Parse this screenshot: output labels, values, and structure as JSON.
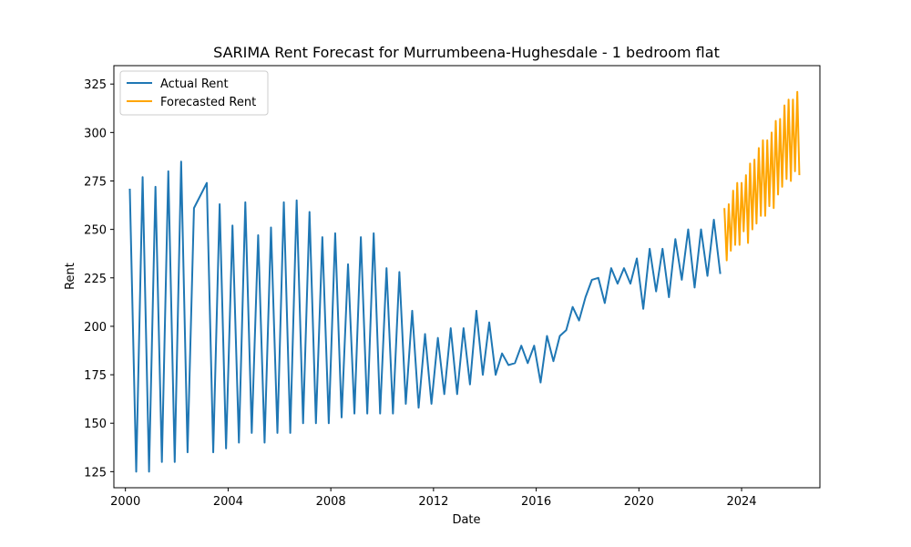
{
  "chart_data": {
    "type": "line",
    "title": "SARIMA Rent Forecast for Murrumbeena-Hughesdale - 1 bedroom flat",
    "xlabel": "Date",
    "ylabel": "Rent",
    "xlim": [
      1999.55,
      2027.05
    ],
    "ylim": [
      116.7,
      334.5
    ],
    "x_ticks": [
      2000,
      2004,
      2008,
      2012,
      2016,
      2020,
      2024
    ],
    "x_tick_labels": [
      "2000",
      "2004",
      "2008",
      "2012",
      "2016",
      "2020",
      "2024"
    ],
    "y_ticks": [
      125,
      150,
      175,
      200,
      225,
      250,
      275,
      300,
      325
    ],
    "y_tick_labels": [
      "125",
      "150",
      "175",
      "200",
      "225",
      "250",
      "275",
      "300",
      "325"
    ],
    "grid": false,
    "legend_position": "top-left",
    "series": [
      {
        "name": "Actual Rent",
        "color": "#1f77b4",
        "x": [
          2000.17,
          2000.42,
          2000.67,
          2000.92,
          2001.17,
          2001.42,
          2001.67,
          2001.92,
          2002.17,
          2002.42,
          2002.67,
          2003.17,
          2003.42,
          2003.67,
          2003.92,
          2004.17,
          2004.42,
          2004.67,
          2004.92,
          2005.17,
          2005.42,
          2005.67,
          2005.92,
          2006.17,
          2006.42,
          2006.67,
          2006.92,
          2007.17,
          2007.42,
          2007.67,
          2007.92,
          2008.17,
          2008.42,
          2008.67,
          2008.92,
          2009.17,
          2009.42,
          2009.67,
          2009.92,
          2010.17,
          2010.42,
          2010.67,
          2010.92,
          2011.17,
          2011.42,
          2011.67,
          2011.92,
          2012.17,
          2012.42,
          2012.67,
          2012.92,
          2013.17,
          2013.42,
          2013.67,
          2013.92,
          2014.17,
          2014.42,
          2014.67,
          2014.92,
          2015.17,
          2015.42,
          2015.67,
          2015.92,
          2016.17,
          2016.42,
          2016.67,
          2016.92,
          2017.17,
          2017.42,
          2017.67,
          2017.92,
          2018.17,
          2018.42,
          2018.67,
          2018.92,
          2019.17,
          2019.42,
          2019.67,
          2019.92,
          2020.17,
          2020.42,
          2020.67,
          2020.92,
          2021.17,
          2021.42,
          2021.67,
          2021.92,
          2022.17,
          2022.42,
          2022.67,
          2022.92,
          2023.17
        ],
        "values": [
          271,
          125,
          277,
          125,
          272,
          130,
          280,
          130,
          285,
          135,
          261,
          274,
          135,
          263,
          137,
          252,
          140,
          264,
          145,
          247,
          140,
          251,
          145,
          264,
          145,
          265,
          150,
          259,
          150,
          246,
          150,
          248,
          153,
          232,
          155,
          246,
          155,
          248,
          155,
          230,
          155,
          228,
          160,
          208,
          158,
          196,
          160,
          194,
          165,
          199,
          165,
          199,
          170,
          208,
          175,
          202,
          175,
          186,
          180,
          181,
          190,
          181,
          190,
          171,
          195,
          182,
          195,
          198,
          210,
          203,
          215,
          224,
          225,
          212,
          230,
          222,
          230,
          222,
          235,
          209,
          240,
          218,
          240,
          215,
          245,
          224,
          250,
          220,
          250,
          226,
          255,
          227
        ]
      },
      {
        "name": "Forecasted Rent",
        "color": "#ffa500",
        "x": [
          2023.33,
          2023.42,
          2023.5,
          2023.58,
          2023.67,
          2023.75,
          2023.83,
          2023.92,
          2024.0,
          2024.08,
          2024.17,
          2024.25,
          2024.33,
          2024.42,
          2024.5,
          2024.58,
          2024.67,
          2024.75,
          2024.83,
          2024.92,
          2025.0,
          2025.08,
          2025.17,
          2025.25,
          2025.33,
          2025.42,
          2025.5,
          2025.58,
          2025.67,
          2025.75,
          2025.83,
          2025.92,
          2026.0,
          2026.08,
          2026.17,
          2026.25
        ],
        "values": [
          261,
          234,
          263,
          239,
          270,
          242,
          274,
          242,
          274,
          249,
          278,
          243,
          284,
          250,
          286,
          253,
          292,
          257,
          296,
          257,
          296,
          262,
          300,
          261,
          306,
          268,
          307,
          272,
          314,
          276,
          317,
          275,
          317,
          280,
          321,
          278
        ]
      }
    ]
  }
}
